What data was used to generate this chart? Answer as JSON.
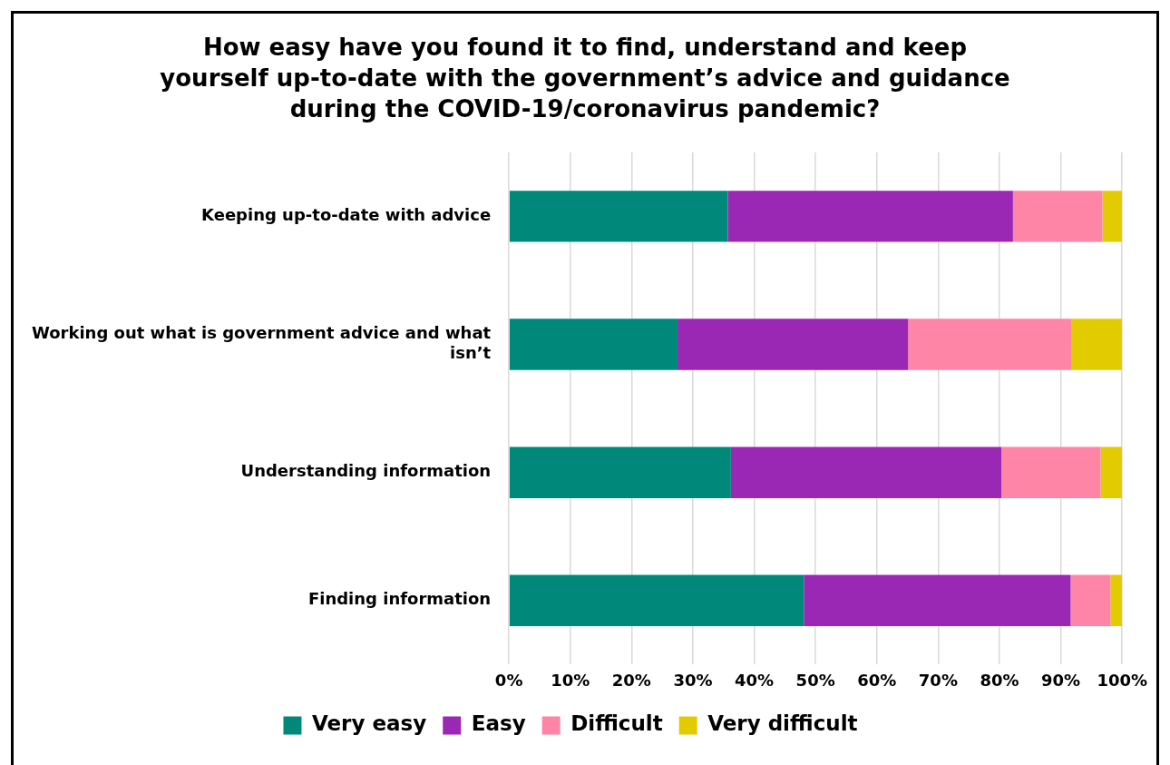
{
  "chart_data": {
    "type": "bar",
    "orientation": "horizontal",
    "stacked": true,
    "title": "How easy have you found it to find, understand and keep yourself up-to-date with the government’s advice and guidance during the COVID-19/coronavirus pandemic?",
    "categories": [
      "Keeping up-to-date with advice",
      "Working out what is government advice and what isn’t",
      "Understanding information",
      "Finding information"
    ],
    "series": [
      {
        "name": "Very easy",
        "color": "#00897b",
        "values": [
          35.7,
          27.5,
          36.2,
          48.1
        ]
      },
      {
        "name": "Easy",
        "color": "#9b27b5",
        "values": [
          46.5,
          37.6,
          44.1,
          43.5
        ]
      },
      {
        "name": "Difficult",
        "color": "#ff85a6",
        "values": [
          14.6,
          26.6,
          16.2,
          6.5
        ]
      },
      {
        "name": "Very difficult",
        "color": "#e2cc00",
        "values": [
          3.2,
          8.3,
          3.5,
          1.9
        ]
      }
    ],
    "xlim": [
      0,
      100
    ],
    "xticks": [
      {
        "value": 0,
        "label": "0%"
      },
      {
        "value": 10,
        "label": "10%"
      },
      {
        "value": 20,
        "label": "20%"
      },
      {
        "value": 30,
        "label": "30%"
      },
      {
        "value": 40,
        "label": "40%"
      },
      {
        "value": 50,
        "label": "50%"
      },
      {
        "value": 60,
        "label": "60%"
      },
      {
        "value": 70,
        "label": "70%"
      },
      {
        "value": 80,
        "label": "80%"
      },
      {
        "value": 90,
        "label": "90%"
      },
      {
        "value": 100,
        "label": "100%"
      }
    ],
    "grid": "x",
    "legend": "bottom"
  }
}
